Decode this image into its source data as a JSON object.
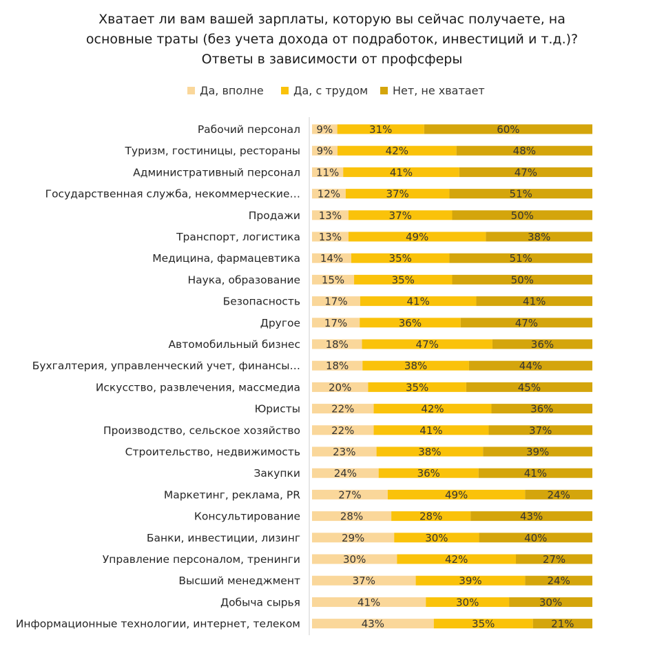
{
  "title_lines": [
    "Хватает ли вам вашей зарплаты, которую вы сейчас получаете, на",
    "основные траты  (без учета дохода от подработок, инвестиций и т.д.)?",
    "Ответы в зависимости от профсферы"
  ],
  "colors": {
    "series_1": "#fad79a",
    "series_2": "#fac20a",
    "series_3": "#d4a50c",
    "axis": "#cfcfcf"
  },
  "chart_data": {
    "type": "bar",
    "orientation": "horizontal",
    "stacked": true,
    "percent_suffix": "%",
    "legend_position": "top",
    "series": [
      {
        "name": "Да, вполне",
        "values": [
          9,
          9,
          11,
          12,
          13,
          13,
          14,
          15,
          17,
          17,
          18,
          18,
          20,
          22,
          22,
          23,
          24,
          27,
          28,
          29,
          30,
          37,
          41,
          43
        ]
      },
      {
        "name": "Да, с трудом",
        "values": [
          31,
          42,
          41,
          37,
          37,
          49,
          35,
          35,
          41,
          36,
          47,
          38,
          35,
          42,
          41,
          38,
          36,
          49,
          28,
          30,
          42,
          39,
          30,
          35
        ]
      },
      {
        "name": "Нет, не хватает",
        "values": [
          60,
          48,
          47,
          51,
          50,
          38,
          51,
          50,
          41,
          47,
          36,
          44,
          45,
          36,
          37,
          39,
          41,
          24,
          43,
          40,
          27,
          24,
          30,
          21
        ]
      }
    ],
    "categories": [
      "Рабочий персонал",
      "Туризм, гостиницы, рестораны",
      "Административный персонал",
      "Государственная служба, некоммерческие…",
      "Продажи",
      "Транспорт, логистика",
      "Медицина, фармацевтика",
      "Наука, образование",
      "Безопасность",
      "Другое",
      "Автомобильный бизнес",
      "Бухгалтерия, управленческий учет, финансы…",
      "Искусство, развлечения, массмедиа",
      "Юристы",
      "Производство, сельское хозяйство",
      "Строительство, недвижимость",
      "Закупки",
      "Маркетинг, реклама, PR",
      "Консультирование",
      "Банки, инвестиции, лизинг",
      "Управление персоналом, тренинги",
      "Высший менеджмент",
      "Добыча сырья",
      "Информационные технологии, интернет, телеком"
    ]
  }
}
